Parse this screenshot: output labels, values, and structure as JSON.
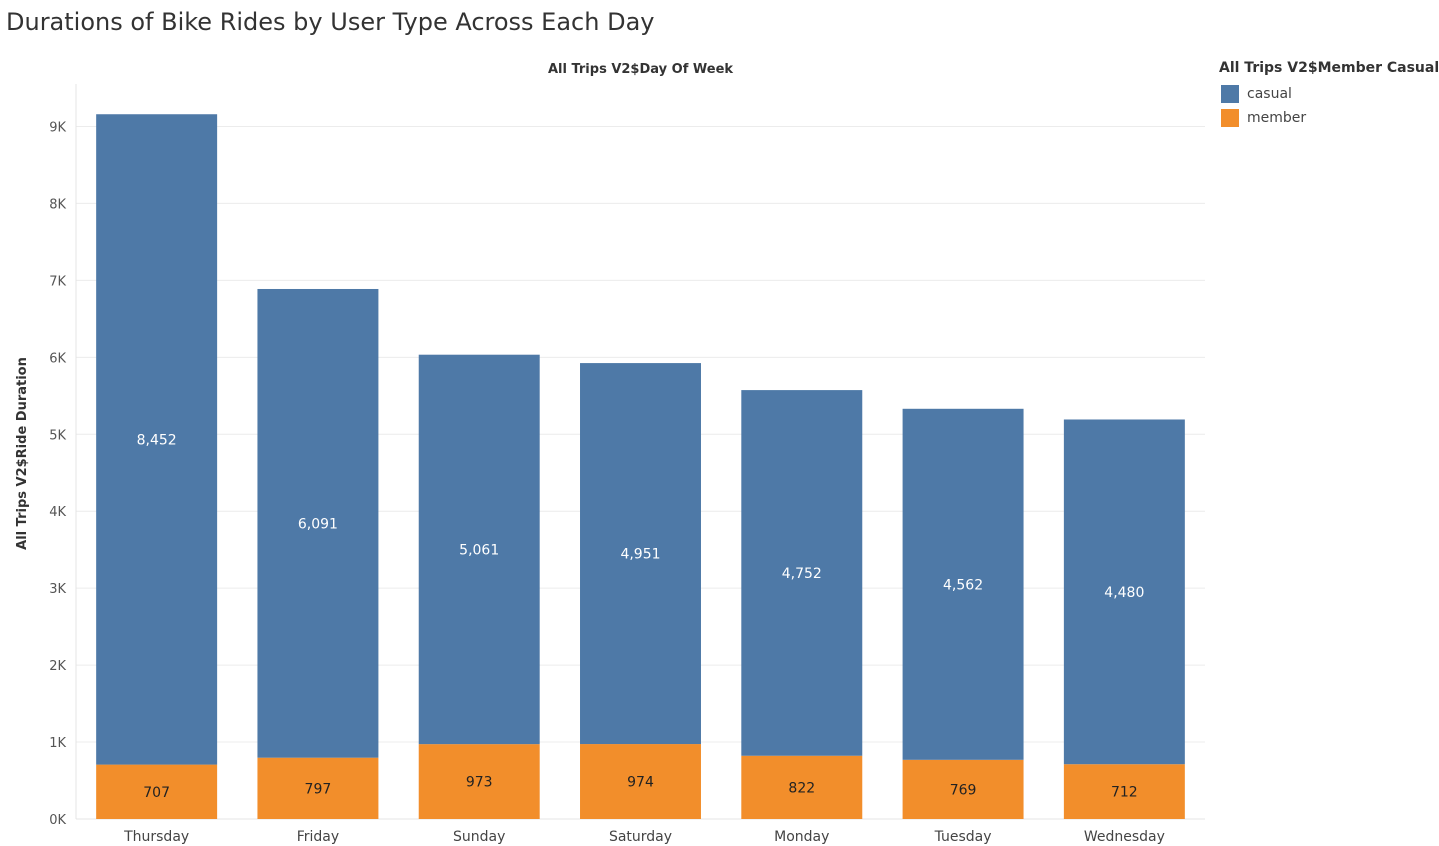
{
  "chart_data": {
    "type": "bar",
    "stacked": true,
    "title": "Durations of Bike Rides by User Type Across Each Day",
    "xlabel": "All Trips V2$Day Of Week",
    "ylabel": "All Trips V2$Ride Duration",
    "categories": [
      "Thursday",
      "Friday",
      "Sunday",
      "Saturday",
      "Monday",
      "Tuesday",
      "Wednesday"
    ],
    "series": [
      {
        "name": "member",
        "values": [
          707,
          797,
          973,
          974,
          822,
          769,
          712
        ],
        "color": "#f28e2b"
      },
      {
        "name": "casual",
        "values": [
          8452,
          6091,
          5061,
          4951,
          4752,
          4562,
          4480
        ],
        "color": "#4e79a7"
      }
    ],
    "ylim": [
      0,
      9500
    ],
    "yticks": [
      0,
      1000,
      2000,
      3000,
      4000,
      5000,
      6000,
      7000,
      8000,
      9000
    ],
    "ytick_labels": [
      "0K",
      "1K",
      "2K",
      "3K",
      "4K",
      "5K",
      "6K",
      "7K",
      "8K",
      "9K"
    ],
    "grid": true,
    "legend": {
      "title": "All Trips V2$Member Casual",
      "placement": "top-right",
      "items": [
        {
          "label": "casual",
          "color": "#4e79a7"
        },
        {
          "label": "member",
          "color": "#f28e2b"
        }
      ]
    }
  }
}
